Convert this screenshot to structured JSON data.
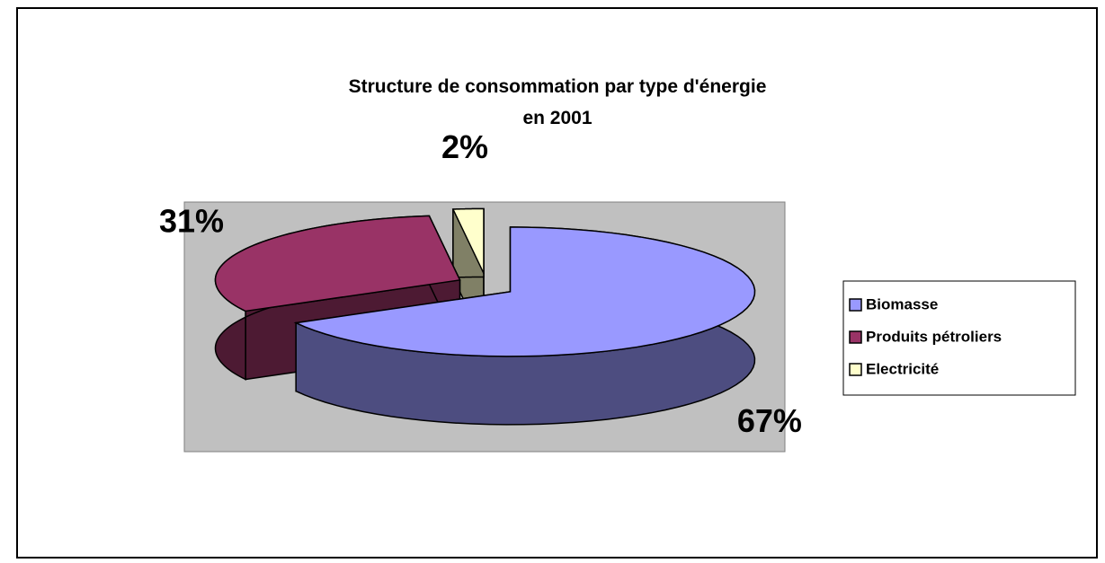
{
  "chart_data": {
    "type": "pie3d",
    "title": [
      "Structure de consommation  par type d'énergie",
      "en 2001"
    ],
    "categories": [
      "Biomasse",
      "Produits pétroliers",
      "Electricité"
    ],
    "values": [
      67,
      31,
      2
    ],
    "value_labels": [
      "67%",
      "31%",
      "2%"
    ],
    "colors": [
      "#9999ff",
      "#993366",
      "#ffffcc"
    ],
    "side_colors": [
      "#4d4d80",
      "#4d1a33",
      "#808066"
    ],
    "legend": "right"
  }
}
